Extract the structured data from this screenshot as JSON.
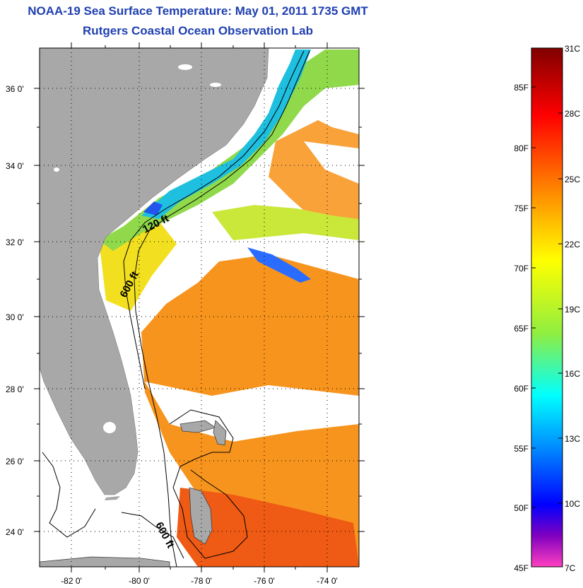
{
  "title": "NOAA-19 Sea Surface Temperature:  May 01, 2011 1735 GMT",
  "subtitle": "Rutgers Coastal Ocean Observation Lab",
  "map": {
    "lon_labels": [
      "-82 0'",
      "-80 0'",
      "-78 0'",
      "-76 0'",
      "-74 0'"
    ],
    "lat_labels": [
      "36 0'",
      "34 0'",
      "32 0'",
      "30 0'",
      "28 0'",
      "26 0'",
      "24 0'"
    ],
    "contour_labels": [
      "120 ft",
      "600 ft",
      "600 ft"
    ],
    "colors": {
      "land": "#a8a8a8",
      "cloud": "#ffffff",
      "warm_water": "#f7941d",
      "gulf_stream": "#ef5a14",
      "cool_shelf": "#8fd94a",
      "cold_shelf": "#1fbfe0"
    }
  },
  "colorbar": {
    "celsius_labels": [
      "31C",
      "28C",
      "25C",
      "22C",
      "19C",
      "16C",
      "13C",
      "10C",
      "7C"
    ],
    "fahrenheit_labels": [
      "85F",
      "80F",
      "75F",
      "70F",
      "65F",
      "60F",
      "55F",
      "50F",
      "45F"
    ],
    "stops": [
      "#800000",
      "#ff0000",
      "#ff8c00",
      "#ffff00",
      "#90ee40",
      "#00ffff",
      "#0080ff",
      "#0000ff",
      "#8000c0",
      "#ff40c0"
    ]
  }
}
